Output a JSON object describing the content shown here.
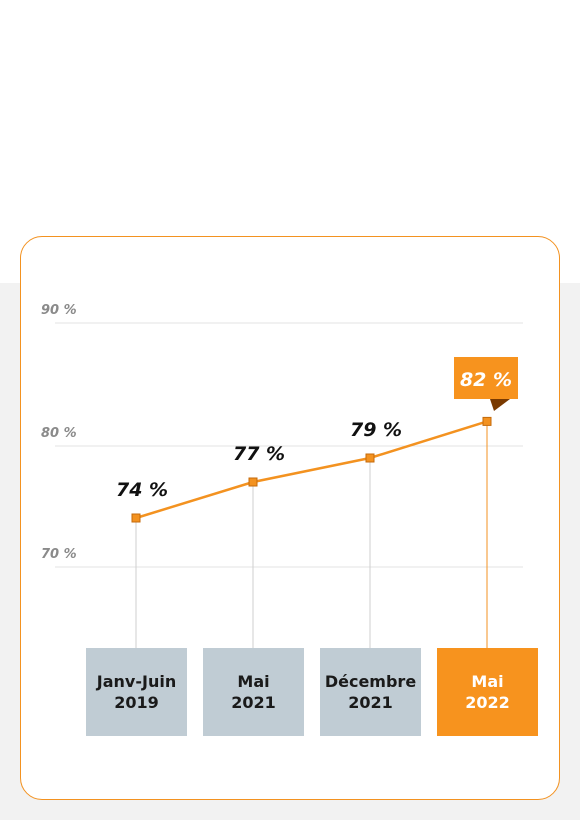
{
  "chart_data": {
    "type": "line",
    "categories": [
      "Janv-Juin\n2019",
      "Mai\n2021",
      "Décembre\n2021",
      "Mai\n2022"
    ],
    "values": [
      74,
      77,
      79,
      82
    ],
    "value_labels": [
      "74 %",
      "77 %",
      "79 %",
      "82 %"
    ],
    "ylim": [
      70,
      90
    ],
    "yticks": [
      {
        "value": 90,
        "label": "90 %"
      },
      {
        "value": 80,
        "label": "80 %"
      },
      {
        "value": 70,
        "label": "70 %"
      }
    ],
    "highlight_index": 3,
    "grid": true,
    "colors": {
      "line": "#f39220",
      "highlight": "#f7931e",
      "category_box": "#c0ccd4",
      "gridline": "#e3e3e3"
    }
  }
}
